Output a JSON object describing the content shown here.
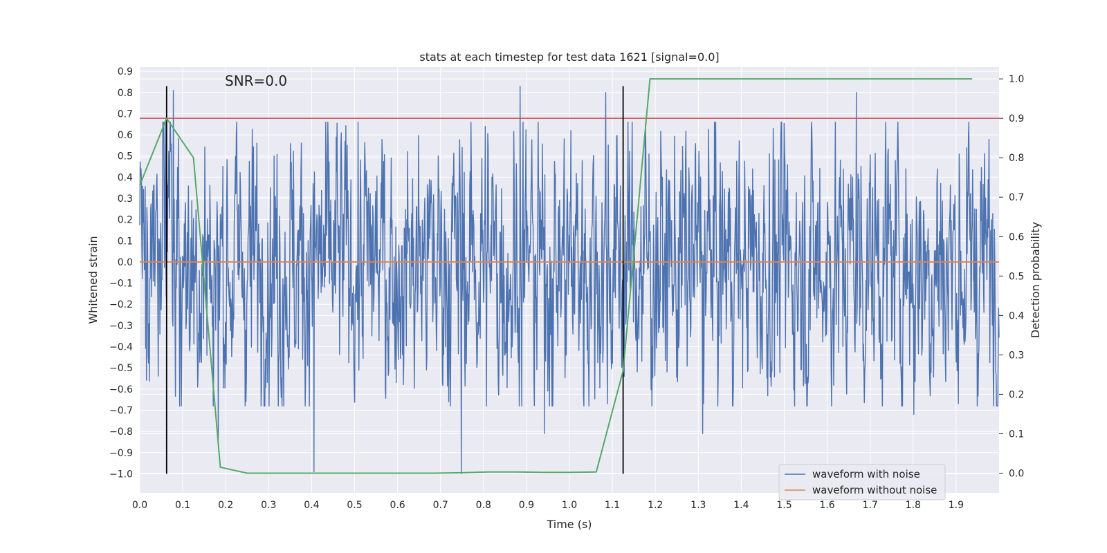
{
  "chart_data": {
    "type": "line",
    "title": "stats at each timestep for test data 1621 [signal=0.0]",
    "annotation": "SNR=0.0",
    "xlabel": "Time (s)",
    "ylabel": "Whitened strain",
    "y2label": "Detection probability",
    "xlim": [
      0.0,
      2.0
    ],
    "ylim": [
      -1.09,
      0.92
    ],
    "y2lim": [
      -0.05,
      1.03
    ],
    "xticks": [
      "0.0",
      "0.1",
      "0.2",
      "0.3",
      "0.4",
      "0.5",
      "0.6",
      "0.7",
      "0.8",
      "0.9",
      "1.0",
      "1.1",
      "1.2",
      "1.3",
      "1.4",
      "1.5",
      "1.6",
      "1.7",
      "1.8",
      "1.9"
    ],
    "yticks": [
      "0.9",
      "0.8",
      "0.7",
      "0.6",
      "0.5",
      "0.4",
      "0.3",
      "0.2",
      "0.1",
      "0.0",
      "−0.1",
      "−0.2",
      "−0.3",
      "−0.4",
      "−0.5",
      "−0.6",
      "−0.7",
      "−0.8",
      "−0.9",
      "−1.0"
    ],
    "y2ticks": [
      "1.0",
      "0.9",
      "0.8",
      "0.7",
      "0.6",
      "0.5",
      "0.4",
      "0.3",
      "0.2",
      "0.1",
      "0.0"
    ],
    "grid": true,
    "legend_position": "bottom-right",
    "colors": {
      "noisy": "#4c72b0",
      "clean": "#dd8452",
      "probability": "#55a868",
      "threshold": "#c44e52",
      "marker": "#000000",
      "background": "#eaeaf2",
      "grid": "#ffffff"
    },
    "series": [
      {
        "name": "waveform with noise",
        "color": "#4c72b0",
        "axis": "left",
        "generated": true,
        "start": 0.0,
        "end": 2.0,
        "samples": 2048,
        "extremes": [
          {
            "x": 0.078,
            "y": 0.81
          },
          {
            "x": 0.885,
            "y": 0.83
          },
          {
            "x": 1.085,
            "y": 0.8
          },
          {
            "x": 1.668,
            "y": 0.8
          },
          {
            "x": 0.405,
            "y": -0.99
          },
          {
            "x": 0.748,
            "y": -1.0
          },
          {
            "x": 0.183,
            "y": -0.84
          },
          {
            "x": 0.942,
            "y": -0.81
          },
          {
            "x": 1.31,
            "y": -0.81
          },
          {
            "x": 1.802,
            "y": -0.72
          }
        ]
      },
      {
        "name": "waveform without noise",
        "color": "#dd8452",
        "axis": "left",
        "x": [
          0.0,
          2.0
        ],
        "values": [
          0.0,
          0.0
        ]
      },
      {
        "name": "Detection probability",
        "color": "#55a868",
        "axis": "right",
        "x": [
          0.0,
          0.0625,
          0.125,
          0.1875,
          0.25,
          0.3125,
          0.375,
          0.4375,
          0.5,
          0.5625,
          0.625,
          0.6875,
          0.75,
          0.8125,
          0.875,
          0.9375,
          1.0,
          1.0625,
          1.125,
          1.1875,
          1.25,
          1.3125,
          1.375,
          1.4375,
          1.5,
          1.5625,
          1.625,
          1.6875,
          1.75,
          1.8125,
          1.875,
          1.9375
        ],
        "values": [
          0.73,
          0.9,
          0.8,
          0.015,
          0.0,
          0.0,
          0.0,
          0.0,
          0.0,
          0.0,
          0.0,
          0.0,
          0.001,
          0.003,
          0.003,
          0.002,
          0.002,
          0.003,
          0.26,
          1.0,
          1.0,
          1.0,
          1.0,
          1.0,
          1.0,
          1.0,
          1.0,
          1.0,
          1.0,
          1.0,
          1.0,
          1.0
        ]
      }
    ],
    "threshold": {
      "axis": "right",
      "value": 0.9
    },
    "vertical_markers": [
      {
        "x": 0.0625,
        "y_range": [
          -1.0,
          0.83
        ]
      },
      {
        "x": 1.125,
        "y_range": [
          -1.0,
          0.83
        ]
      }
    ],
    "legend": [
      "waveform with noise",
      "waveform without noise"
    ]
  }
}
